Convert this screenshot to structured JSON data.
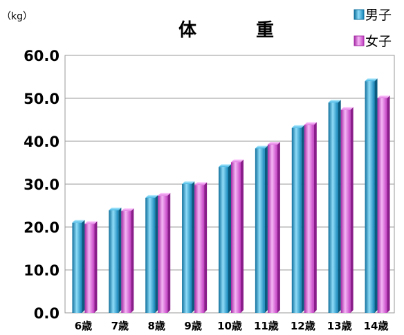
{
  "chart_data": {
    "type": "bar",
    "title_chars": [
      "体",
      "重"
    ],
    "unit": "（kg）",
    "categories": [
      "6歳",
      "7歳",
      "8歳",
      "9歳",
      "10歳",
      "11歳",
      "12歳",
      "13歳",
      "14歳"
    ],
    "series": [
      {
        "name": "男子",
        "color": "#1e9fd2",
        "values": [
          21.0,
          23.9,
          26.8,
          30.0,
          34.0,
          38.3,
          43.1,
          49.0,
          54.0
        ]
      },
      {
        "name": "女子",
        "color": "#dd5fdd",
        "values": [
          20.7,
          23.7,
          27.3,
          29.8,
          35.1,
          39.2,
          43.8,
          47.3,
          50.0
        ]
      }
    ],
    "yticks": [
      "0.0",
      "10.0",
      "20.0",
      "30.0",
      "40.0",
      "50.0",
      "60.0"
    ],
    "ylim": [
      0,
      60
    ],
    "grid": true,
    "legend_position": "top-right"
  }
}
